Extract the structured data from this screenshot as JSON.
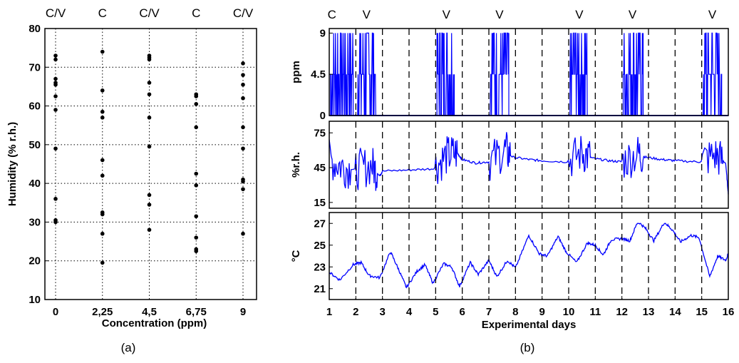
{
  "captions": {
    "a": "(a)",
    "b": "(b)"
  },
  "chart_data": [
    {
      "id": "a",
      "type": "scatter",
      "xlabel": "Concentration (ppm)",
      "ylabel": "Humidity (% r.h.)",
      "xlim": [
        0,
        9
      ],
      "ylim": [
        10,
        80
      ],
      "xticks": [
        0,
        2.25,
        4.5,
        6.75,
        9
      ],
      "xtick_labels": [
        "0",
        "2,25",
        "4,5",
        "6,75",
        "9"
      ],
      "yticks": [
        10,
        20,
        30,
        40,
        50,
        60,
        70,
        80
      ],
      "ytick_labels": [
        "10",
        "20",
        "30",
        "40",
        "50",
        "60",
        "70",
        "80"
      ],
      "top_labels": [
        "C/V",
        "C",
        "C/V",
        "C",
        "C/V"
      ],
      "grid": true,
      "series": [
        {
          "x": 0,
          "y": [
            73,
            72,
            67,
            66,
            65.5,
            62.5,
            59,
            49,
            36,
            30.5,
            30
          ]
        },
        {
          "x": 2.25,
          "y": [
            74,
            64,
            58.5,
            57,
            46,
            42,
            32.5,
            32,
            27,
            19.5
          ]
        },
        {
          "x": 4.5,
          "y": [
            73,
            72.5,
            72,
            66,
            63,
            57,
            49.5,
            37,
            34.5,
            28
          ]
        },
        {
          "x": 6.75,
          "y": [
            63,
            62.5,
            60.5,
            54.5,
            42.5,
            39.5,
            31.5,
            26,
            23,
            22.5
          ]
        },
        {
          "x": 9,
          "y": [
            71,
            68,
            65.5,
            62,
            54.5,
            49,
            41,
            40.5,
            38.5,
            27
          ]
        }
      ]
    },
    {
      "id": "b",
      "type": "line",
      "xlabel": "Experimental days",
      "xlim": [
        1,
        16
      ],
      "xticks": [
        1,
        2,
        3,
        4,
        5,
        6,
        7,
        8,
        9,
        10,
        11,
        12,
        13,
        14,
        15,
        16
      ],
      "xtick_labels": [
        "1",
        "2",
        "3",
        "4",
        "5",
        "6",
        "7",
        "8",
        "9",
        "10",
        "11",
        "12",
        "13",
        "14",
        "15",
        "16"
      ],
      "day_markers": [
        2,
        3,
        4,
        5,
        6,
        7,
        8,
        9,
        10,
        11,
        12,
        13,
        14,
        15
      ],
      "top_labels": [
        {
          "day": 1.1,
          "text": "C"
        },
        {
          "day": 2.4,
          "text": "V"
        },
        {
          "day": 5.4,
          "text": "V"
        },
        {
          "day": 7.4,
          "text": "V"
        },
        {
          "day": 10.4,
          "text": "V"
        },
        {
          "day": 12.4,
          "text": "V"
        },
        {
          "day": 15.4,
          "text": "V"
        }
      ],
      "color": "#0000ff",
      "panels": [
        {
          "ylabel": "ppm",
          "ylim": [
            0,
            9.5
          ],
          "yticks": [
            0,
            4.5,
            9
          ],
          "ytick_labels": [
            "0",
            "4.5",
            "9"
          ],
          "active_intervals": [
            [
              1.05,
              1.9
            ],
            [
              2.05,
              2.75
            ],
            [
              5.05,
              5.7
            ],
            [
              7.05,
              7.75
            ],
            [
              10.05,
              10.7
            ],
            [
              12.05,
              12.8
            ],
            [
              15.05,
              15.75
            ]
          ],
          "baseline": 0
        },
        {
          "ylabel": "%r.h.",
          "ylim": [
            10,
            85
          ],
          "yticks": [
            15,
            45,
            75
          ],
          "ytick_labels": [
            "15",
            "45",
            "75"
          ],
          "points": [
            [
              1,
              52
            ],
            [
              1.5,
              46
            ],
            [
              2,
              43
            ],
            [
              2.6,
              47
            ],
            [
              2.9,
              38
            ],
            [
              3,
              42
            ],
            [
              4,
              43
            ],
            [
              4.9,
              44
            ],
            [
              5.4,
              55
            ],
            [
              5.8,
              58
            ],
            [
              6,
              52
            ],
            [
              6.5,
              49
            ],
            [
              7,
              50
            ],
            [
              7.6,
              60
            ],
            [
              7.9,
              54
            ],
            [
              8.5,
              52
            ],
            [
              9,
              51
            ],
            [
              9.9,
              50
            ],
            [
              10.5,
              58
            ],
            [
              10.9,
              53
            ],
            [
              11.5,
              51
            ],
            [
              12,
              50
            ],
            [
              12.6,
              57
            ],
            [
              12.9,
              54
            ],
            [
              13.5,
              52
            ],
            [
              14,
              51
            ],
            [
              14.9,
              50
            ],
            [
              15.5,
              56
            ],
            [
              15.9,
              49
            ],
            [
              16,
              22
            ]
          ],
          "noisy_intervals": [
            [
              1,
              2
            ],
            [
              2,
              3
            ],
            [
              5,
              6
            ],
            [
              7,
              8
            ],
            [
              10,
              11
            ],
            [
              12,
              13
            ],
            [
              15,
              16
            ]
          ]
        },
        {
          "ylabel": "°C",
          "ylim": [
            20,
            28
          ],
          "yticks": [
            21,
            23,
            25,
            27
          ],
          "ytick_labels": [
            "21",
            "23",
            "25",
            "27"
          ],
          "points": [
            [
              1,
              22.5
            ],
            [
              1.4,
              21.8
            ],
            [
              1.9,
              23.2
            ],
            [
              2.2,
              23.4
            ],
            [
              2.5,
              22.2
            ],
            [
              2.9,
              22
            ],
            [
              3.3,
              24.4
            ],
            [
              3.6,
              22.8
            ],
            [
              3.9,
              21.1
            ],
            [
              4.3,
              22.6
            ],
            [
              4.6,
              23.2
            ],
            [
              4.9,
              21.5
            ],
            [
              5.3,
              23.3
            ],
            [
              5.6,
              23
            ],
            [
              5.9,
              21.2
            ],
            [
              6.3,
              23.4
            ],
            [
              6.6,
              22.3
            ],
            [
              7,
              23.6
            ],
            [
              7.3,
              22.1
            ],
            [
              7.7,
              23.6
            ],
            [
              8,
              22.9
            ],
            [
              8.5,
              25.9
            ],
            [
              8.9,
              24.2
            ],
            [
              9.2,
              24
            ],
            [
              9.6,
              25.8
            ],
            [
              9.9,
              24.4
            ],
            [
              10.3,
              23.4
            ],
            [
              10.7,
              25.2
            ],
            [
              11,
              25
            ],
            [
              11.3,
              24.1
            ],
            [
              11.6,
              25.5
            ],
            [
              12,
              25.6
            ],
            [
              12.3,
              25.4
            ],
            [
              12.6,
              27.2
            ],
            [
              12.9,
              26.5
            ],
            [
              13.2,
              25.4
            ],
            [
              13.6,
              27.1
            ],
            [
              13.9,
              26.4
            ],
            [
              14.2,
              25.3
            ],
            [
              14.6,
              25.9
            ],
            [
              14.9,
              25.7
            ],
            [
              15.3,
              22.1
            ],
            [
              15.6,
              24
            ],
            [
              15.9,
              23.6
            ],
            [
              16,
              24.2
            ]
          ]
        }
      ]
    }
  ]
}
